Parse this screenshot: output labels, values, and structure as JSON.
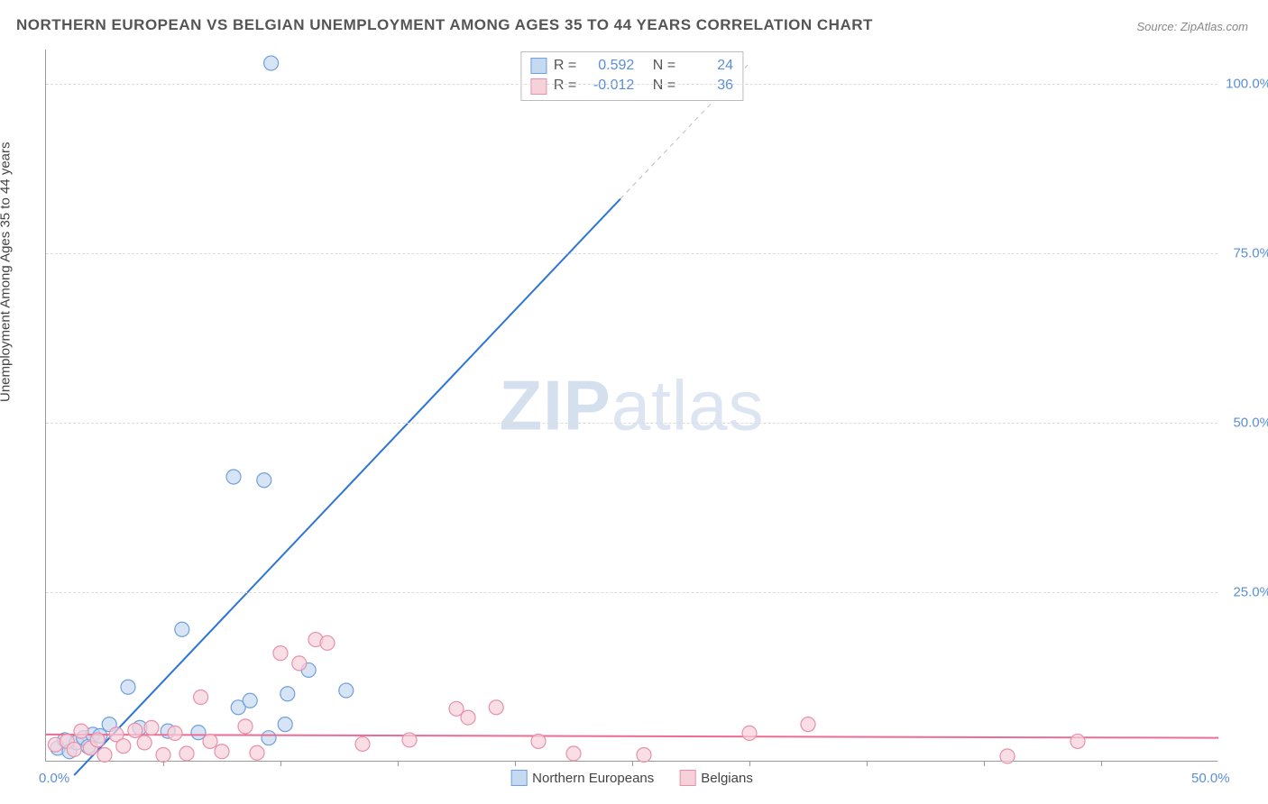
{
  "title": "NORTHERN EUROPEAN VS BELGIAN UNEMPLOYMENT AMONG AGES 35 TO 44 YEARS CORRELATION CHART",
  "source": "Source: ZipAtlas.com",
  "y_axis_label": "Unemployment Among Ages 35 to 44 years",
  "watermark_a": "ZIP",
  "watermark_b": "atlas",
  "chart": {
    "type": "scatter",
    "xlim": [
      0,
      50
    ],
    "ylim": [
      0,
      105
    ],
    "x_ticks": [
      0,
      5,
      10,
      15,
      20,
      25,
      30,
      35,
      40,
      45,
      50
    ],
    "x_tick_labels": {
      "0": "0.0%",
      "50": "50.0%"
    },
    "y_ticks": [
      25,
      50,
      75,
      100
    ],
    "y_tick_labels": {
      "25": "25.0%",
      "50": "50.0%",
      "75": "75.0%",
      "100": "100.0%"
    },
    "background": "#ffffff",
    "grid_color": "#dddddd",
    "axis_color": "#999999",
    "marker_radius": 8,
    "marker_stroke_width": 1.2,
    "line_width": 2
  },
  "series": [
    {
      "name": "Northern Europeans",
      "fill": "#c5d9f1",
      "stroke": "#6fa0dc",
      "line_color": "#2e75d6",
      "trend": {
        "x1": 1.2,
        "y1": -2,
        "x2": 24.5,
        "y2": 83
      },
      "trend_dash": {
        "x1": 24.5,
        "y1": 83,
        "x2": 30,
        "y2": 103
      },
      "stats": {
        "R_label": "R =",
        "R": "0.592",
        "N_label": "N =",
        "N": "24"
      },
      "points": [
        {
          "x": 0.5,
          "y": 2.0
        },
        {
          "x": 0.8,
          "y": 3.2
        },
        {
          "x": 1.0,
          "y": 1.5
        },
        {
          "x": 1.3,
          "y": 2.8
        },
        {
          "x": 1.6,
          "y": 3.5
        },
        {
          "x": 1.8,
          "y": 2.2
        },
        {
          "x": 2.0,
          "y": 4.0
        },
        {
          "x": 2.3,
          "y": 3.8
        },
        {
          "x": 2.7,
          "y": 5.5
        },
        {
          "x": 3.5,
          "y": 11.0
        },
        {
          "x": 4.0,
          "y": 5.0
        },
        {
          "x": 5.2,
          "y": 4.5
        },
        {
          "x": 5.8,
          "y": 19.5
        },
        {
          "x": 6.5,
          "y": 4.3
        },
        {
          "x": 8.0,
          "y": 42.0
        },
        {
          "x": 8.2,
          "y": 8.0
        },
        {
          "x": 8.7,
          "y": 9.0
        },
        {
          "x": 9.3,
          "y": 41.5
        },
        {
          "x": 9.5,
          "y": 3.5
        },
        {
          "x": 9.6,
          "y": 103.0
        },
        {
          "x": 10.2,
          "y": 5.5
        },
        {
          "x": 10.3,
          "y": 10.0
        },
        {
          "x": 12.8,
          "y": 10.5
        },
        {
          "x": 11.2,
          "y": 13.5
        }
      ]
    },
    {
      "name": "Belgians",
      "fill": "#f6d1da",
      "stroke": "#e88fa9",
      "line_color": "#ec6d94",
      "trend": {
        "x1": 0,
        "y1": 4.0,
        "x2": 50,
        "y2": 3.5
      },
      "stats": {
        "R_label": "R =",
        "R": "-0.012",
        "N_label": "N =",
        "N": "36"
      },
      "points": [
        {
          "x": 0.4,
          "y": 2.5
        },
        {
          "x": 0.9,
          "y": 3.0
        },
        {
          "x": 1.2,
          "y": 1.8
        },
        {
          "x": 1.5,
          "y": 4.5
        },
        {
          "x": 1.9,
          "y": 2.0
        },
        {
          "x": 2.2,
          "y": 3.2
        },
        {
          "x": 2.5,
          "y": 1.0
        },
        {
          "x": 3.0,
          "y": 4.0
        },
        {
          "x": 3.3,
          "y": 2.3
        },
        {
          "x": 3.8,
          "y": 4.6
        },
        {
          "x": 4.2,
          "y": 2.8
        },
        {
          "x": 4.5,
          "y": 5.0
        },
        {
          "x": 5.0,
          "y": 1.0
        },
        {
          "x": 5.5,
          "y": 4.2
        },
        {
          "x": 6.0,
          "y": 1.2
        },
        {
          "x": 6.6,
          "y": 9.5
        },
        {
          "x": 7.0,
          "y": 3.0
        },
        {
          "x": 7.5,
          "y": 1.5
        },
        {
          "x": 8.5,
          "y": 5.2
        },
        {
          "x": 9.0,
          "y": 1.3
        },
        {
          "x": 10.0,
          "y": 16.0
        },
        {
          "x": 10.8,
          "y": 14.5
        },
        {
          "x": 11.5,
          "y": 18.0
        },
        {
          "x": 12.0,
          "y": 17.5
        },
        {
          "x": 13.5,
          "y": 2.6
        },
        {
          "x": 15.5,
          "y": 3.2
        },
        {
          "x": 17.5,
          "y": 7.8
        },
        {
          "x": 18.0,
          "y": 6.5
        },
        {
          "x": 19.2,
          "y": 8.0
        },
        {
          "x": 21.0,
          "y": 3.0
        },
        {
          "x": 22.5,
          "y": 1.2
        },
        {
          "x": 25.5,
          "y": 1.0
        },
        {
          "x": 30.0,
          "y": 4.2
        },
        {
          "x": 32.5,
          "y": 5.5
        },
        {
          "x": 41.0,
          "y": 0.8
        },
        {
          "x": 44.0,
          "y": 3.0
        }
      ]
    }
  ],
  "legend": {
    "a": "Northern Europeans",
    "b": "Belgians"
  }
}
